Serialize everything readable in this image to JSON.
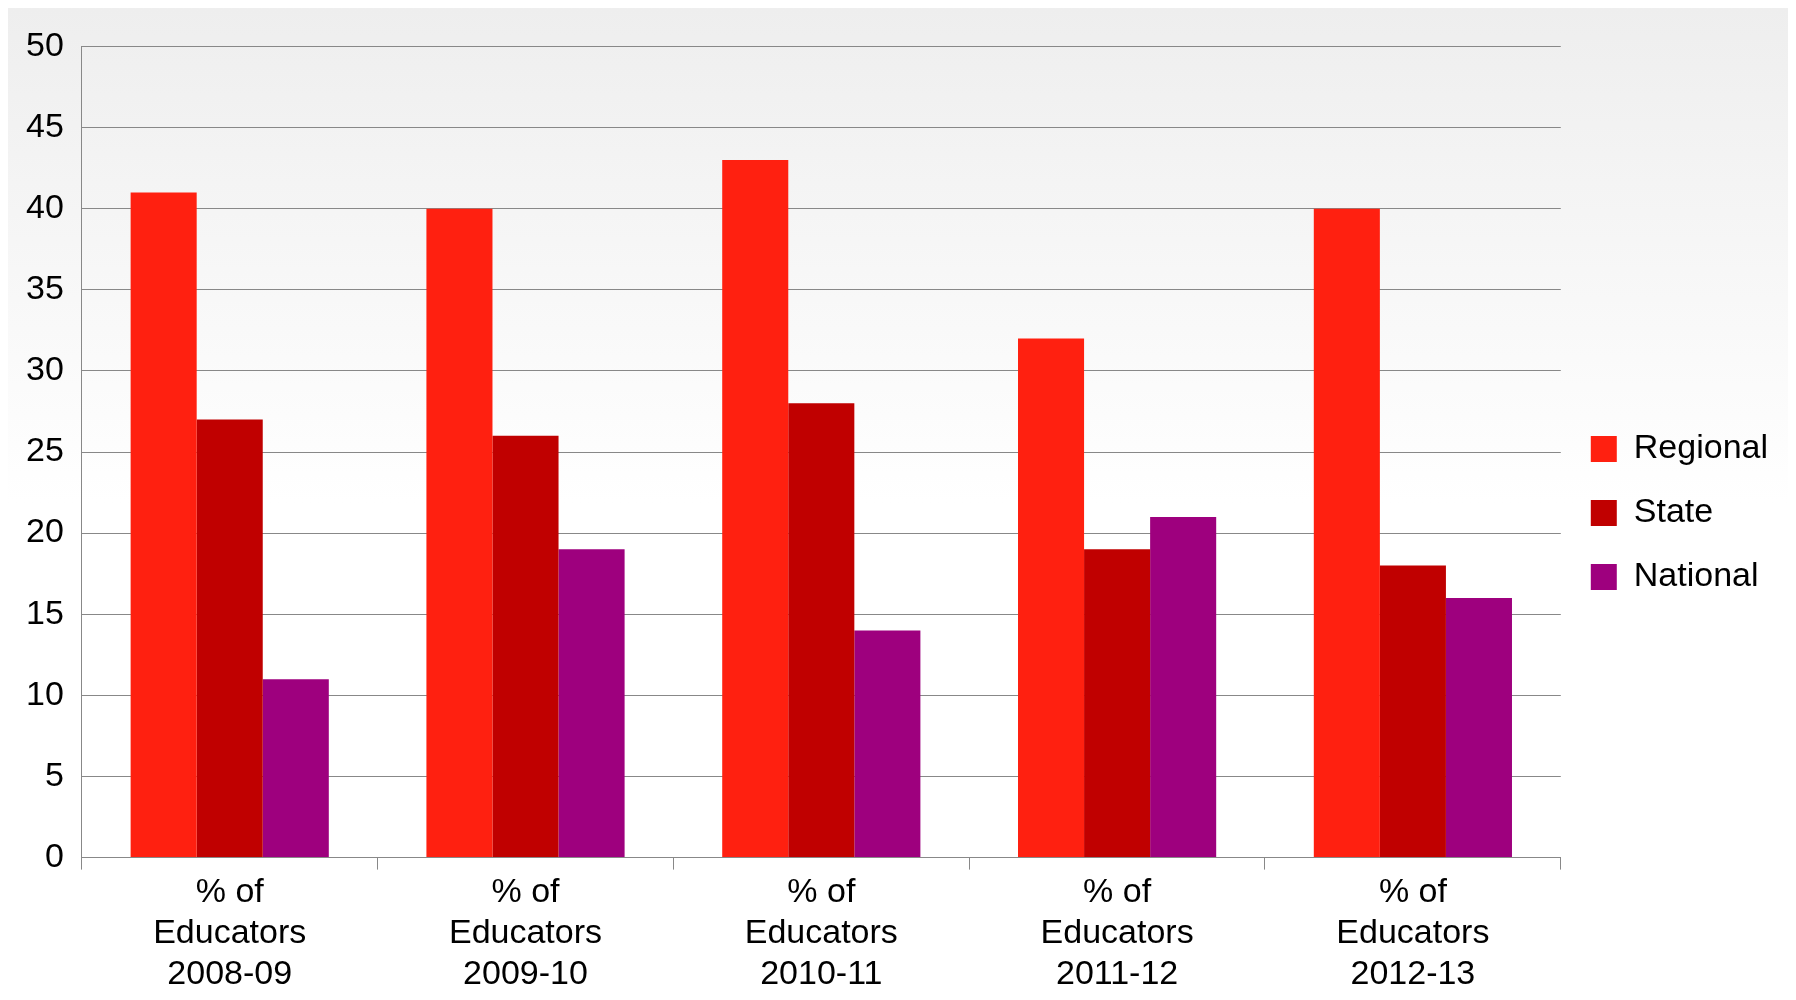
{
  "chart_data": {
    "type": "bar",
    "categories": [
      "% of\nEducators\n2008-09",
      "% of\nEducators\n2009-10",
      "% of\nEducators\n2010-11",
      "% of\nEducators\n2011-12",
      "% of\nEducators\n2012-13"
    ],
    "series": [
      {
        "name": "Regional",
        "color": "#ff2010",
        "values": [
          41,
          40,
          43,
          32,
          40
        ]
      },
      {
        "name": "State",
        "color": "#c00000",
        "values": [
          27,
          26,
          28,
          19,
          18
        ]
      },
      {
        "name": "National",
        "color": "#9e007e",
        "values": [
          11,
          19,
          14,
          21,
          16
        ]
      }
    ],
    "ylim": [
      0,
      50
    ],
    "yticks": [
      0,
      5,
      10,
      15,
      20,
      25,
      30,
      35,
      40,
      45,
      50
    ],
    "grid": "y",
    "legend": "right"
  }
}
